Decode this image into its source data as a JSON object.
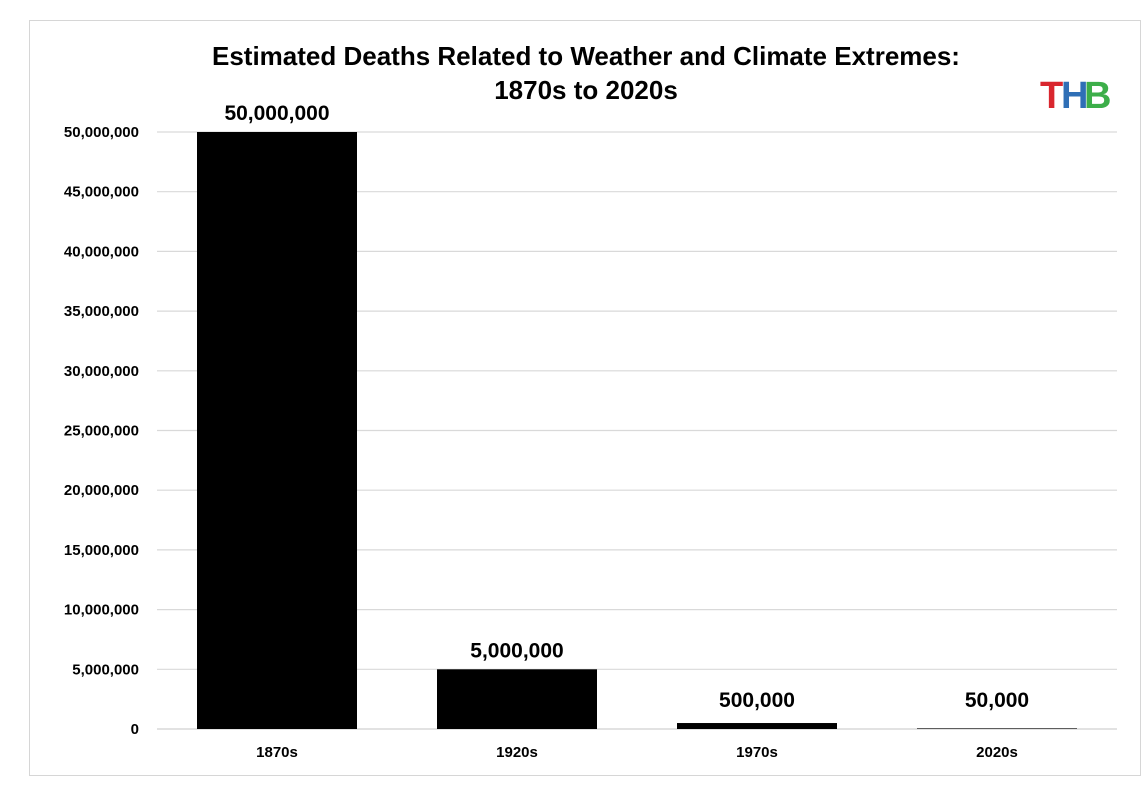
{
  "chart_data": {
    "type": "bar",
    "title": "Estimated Deaths Related to Weather and Climate Extremes:",
    "subtitle": "1870s to 2020s",
    "categories": [
      "1870s",
      "1920s",
      "1970s",
      "2020s"
    ],
    "values": [
      50000000,
      5000000,
      500000,
      50000
    ],
    "data_labels": [
      "50,000,000",
      "5,000,000",
      "500,000",
      "50,000"
    ],
    "ylim": [
      0,
      50000000
    ],
    "yticks": [
      0,
      5000000,
      10000000,
      15000000,
      20000000,
      25000000,
      30000000,
      35000000,
      40000000,
      45000000,
      50000000
    ],
    "ytick_labels": [
      "0",
      "5,000,000",
      "10,000,000",
      "15,000,000",
      "20,000,000",
      "25,000,000",
      "30,000,000",
      "35,000,000",
      "40,000,000",
      "45,000,000",
      "50,000,000"
    ],
    "xlabel": "",
    "ylabel": "",
    "grid": true,
    "bar_color": "#000000",
    "grid_color": "#d9d9d9"
  },
  "logo": {
    "letters": [
      {
        "char": "T",
        "color": "#d9262e"
      },
      {
        "char": "H",
        "color": "#2f6fb6"
      },
      {
        "char": "B",
        "color": "#3cae49"
      }
    ]
  }
}
